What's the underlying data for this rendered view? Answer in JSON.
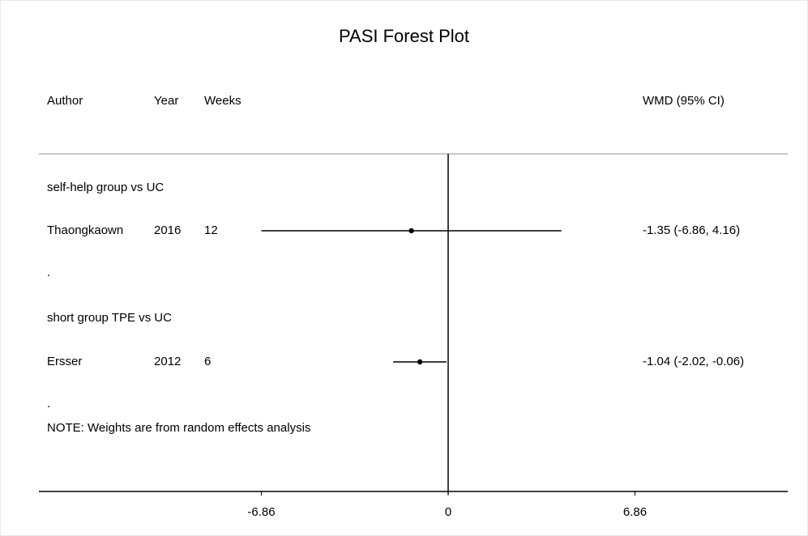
{
  "chart_data": {
    "type": "forest",
    "title": "PASI Forest Plot",
    "columns": {
      "author": "Author",
      "year": "Year",
      "weeks": "Weeks",
      "effect": "WMD (95% CI)"
    },
    "groups": [
      {
        "label": "self-help group vs UC",
        "studies": [
          {
            "author": "Thaongkaown",
            "year": "2016",
            "weeks": "12",
            "wmd": -1.35,
            "lower": -6.86,
            "upper": 4.16,
            "ci_text": "-1.35 (-6.86, 4.16)"
          }
        ],
        "separator": "."
      },
      {
        "label": "short group TPE vs UC",
        "studies": [
          {
            "author": "Ersser",
            "year": "2012",
            "weeks": "6",
            "wmd": -1.04,
            "lower": -2.02,
            "upper": -0.06,
            "ci_text": "-1.04 (-2.02, -0.06)"
          }
        ],
        "separator": "."
      }
    ],
    "note": "NOTE: Weights are from random effects analysis",
    "x_ticks": [
      -6.86,
      0,
      6.86
    ],
    "x_tick_labels": [
      "-6.86",
      "0",
      "6.86"
    ],
    "xlim": [
      -6.86,
      6.86
    ],
    "null_line": 0
  }
}
